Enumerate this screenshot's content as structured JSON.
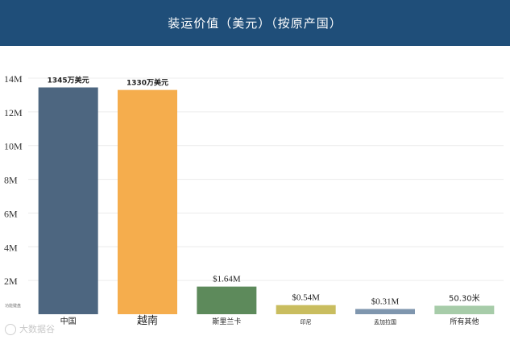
{
  "header": {
    "title": "装运价值（美元）（按原产国）"
  },
  "watermark": "大数据谷",
  "chart_data": {
    "type": "bar",
    "title": "装运价值（美元）（按原产国）",
    "xlabel": "",
    "ylabel": "",
    "categories": [
      "中国",
      "越南",
      "斯里兰卡",
      "印尼",
      "孟加拉国",
      "所有其他"
    ],
    "values": [
      13.45,
      13.3,
      1.64,
      0.54,
      0.31,
      0.503
    ],
    "value_unit": "M",
    "data_labels": [
      "1345万美元",
      "1330万美元",
      "$1.64M",
      "$0.54M",
      "$0.31M",
      "50.30米"
    ],
    "colors": [
      "#4d6680",
      "#f5ad4d",
      "#5d8a5b",
      "#c9bd5f",
      "#7f96ae",
      "#a7cca9"
    ],
    "ylim": [
      0,
      14
    ],
    "yticks": [
      2,
      4,
      6,
      8,
      10,
      12,
      14
    ],
    "ytick_labels": [
      "2M",
      "4M",
      "6M",
      "8M",
      "10M",
      "12M",
      "14M"
    ],
    "small_label": "功能键盘",
    "grid": true,
    "legend": "none"
  }
}
